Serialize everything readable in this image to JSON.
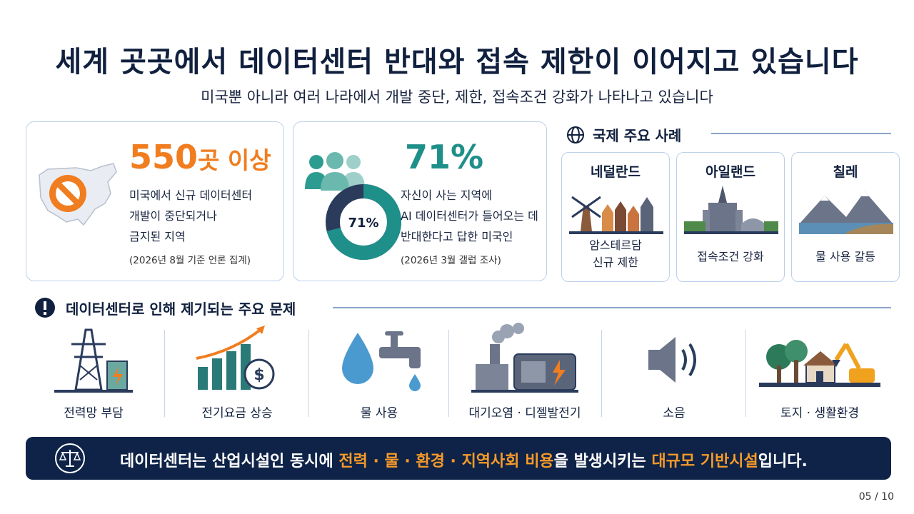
{
  "title": "세계 곳곳에서 데이터센터 반대와 접속 제한이 이어지고 있습니다",
  "subtitle": "미국뿐 아니라 여러 나라에서 개발 중단, 제한, 접속조건 강화가 나타나고 있습니다",
  "stat_us": {
    "number": "550",
    "unit": "곳 이상",
    "desc1": "미국에서 신규 데이터센터",
    "desc2": "개발이 중단되거나",
    "desc3": "금지된 지역",
    "note": "(2026년 8월 기준 언론 집계)"
  },
  "stat_poll": {
    "value": "71%",
    "donut_label": "71%",
    "donut_fraction": 0.71,
    "desc1": "자신이 사는 지역에",
    "desc2": "AI 데이터센터가 들어오는 데",
    "desc3": "반대한다고 답한 미국인",
    "note": "(2026년 3월 갤럽 조사)"
  },
  "international": {
    "heading": "국제 주요 사례",
    "countries": [
      {
        "name": "네덜란드",
        "line1": "암스테르담",
        "line2": "신규 제한"
      },
      {
        "name": "아일랜드",
        "line1": "접속조건 강화",
        "line2": ""
      },
      {
        "name": "칠레",
        "line1": "물 사용 갈등",
        "line2": ""
      }
    ]
  },
  "issues": {
    "heading": "데이터센터로 인해 제기되는 주요 문제",
    "items": [
      {
        "label": "전력망 부담",
        "icon": "power-tower-icon"
      },
      {
        "label": "전기요금 상승",
        "icon": "rising-cost-icon"
      },
      {
        "label": "물 사용",
        "icon": "water-drop-icon"
      },
      {
        "label": "대기오염 · 디젤발전기",
        "icon": "factory-generator-icon"
      },
      {
        "label": "소음",
        "icon": "speaker-icon"
      },
      {
        "label": "토지 · 생활환경",
        "icon": "land-house-icon"
      }
    ]
  },
  "banner": {
    "part1": "데이터센터는 산업시설인 동시에 ",
    "highlight1": "전력 · 물 · 환경 · 지역사회 비용",
    "part2": "을 발생시키는 ",
    "highlight2": "대규모 기반시설",
    "part3": "입니다."
  },
  "page_number": "05 / 10",
  "colors": {
    "navy": "#0e2347",
    "orange": "#f07d1f",
    "teal": "#1f8f8a",
    "border": "#bcd0ea"
  }
}
